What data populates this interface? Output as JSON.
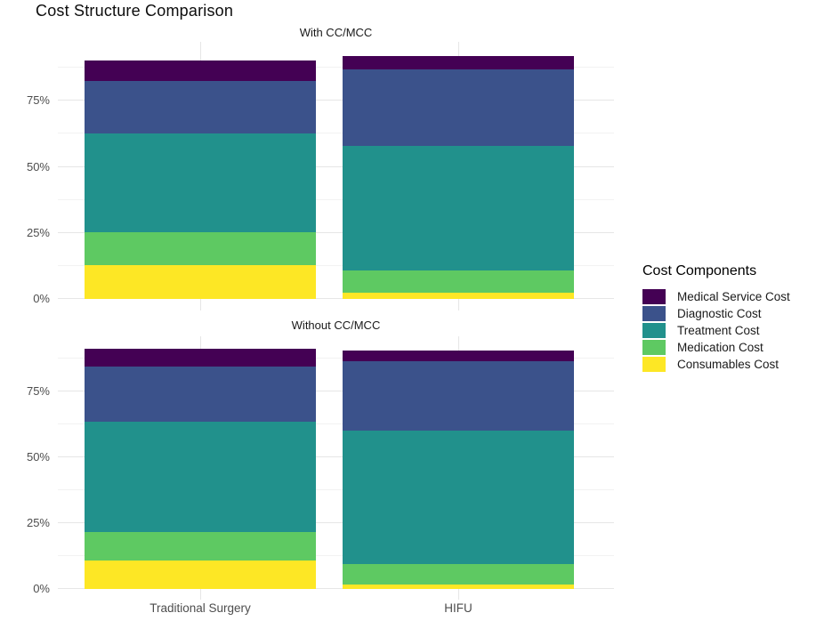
{
  "chart_data": {
    "type": "bar",
    "subtype": "stacked-vertical-percent",
    "title": "Cost Structure Comparison",
    "categories": [
      "Traditional Surgery",
      "HIFU"
    ],
    "y_axis": {
      "tick_labels": [
        "0%",
        "25%",
        "50%",
        "75%"
      ],
      "major_ticks_pct": [
        0,
        25,
        50,
        75
      ],
      "minor_ticks_pct": [
        12.5,
        37.5,
        62.5,
        87.5
      ],
      "range_pct": [
        0,
        97
      ],
      "grid": true
    },
    "legend": {
      "title": "Cost Components",
      "position": "right",
      "entries": [
        {
          "label": "Medical Service Cost",
          "color": "#440154"
        },
        {
          "label": "Diagnostic Cost",
          "color": "#3b528b"
        },
        {
          "label": "Treatment Cost",
          "color": "#21918c"
        },
        {
          "label": "Medication Cost",
          "color": "#5ec962"
        },
        {
          "label": "Consumables Cost",
          "color": "#fde725"
        }
      ]
    },
    "stack_order_note": "series listed top-of-stack first; values are percent of total cost, columns follow categories",
    "facets": [
      {
        "label": "With CC/MCC",
        "series": [
          {
            "name": "Medical Service Cost",
            "color": "#440154",
            "values": [
              7.9,
              5.1
            ]
          },
          {
            "name": "Diagnostic Cost",
            "color": "#3b528b",
            "values": [
              19.8,
              29.0
            ]
          },
          {
            "name": "Treatment Cost",
            "color": "#21918c",
            "values": [
              37.3,
              47.1
            ]
          },
          {
            "name": "Medication Cost",
            "color": "#5ec962",
            "values": [
              12.5,
              8.2
            ]
          },
          {
            "name": "Consumables Cost",
            "color": "#fde725",
            "values": [
              12.9,
              2.5
            ]
          }
        ]
      },
      {
        "label": "Without CC/MCC",
        "series": [
          {
            "name": "Medical Service Cost",
            "color": "#440154",
            "values": [
              6.8,
              4.2
            ]
          },
          {
            "name": "Diagnostic Cost",
            "color": "#3b528b",
            "values": [
              20.9,
              26.3
            ]
          },
          {
            "name": "Treatment Cost",
            "color": "#21918c",
            "values": [
              42.3,
              51.1
            ]
          },
          {
            "name": "Medication Cost",
            "color": "#5ec962",
            "values": [
              10.6,
              7.6
            ]
          },
          {
            "name": "Consumables Cost",
            "color": "#fde725",
            "values": [
              10.8,
              1.6
            ]
          }
        ]
      }
    ]
  }
}
